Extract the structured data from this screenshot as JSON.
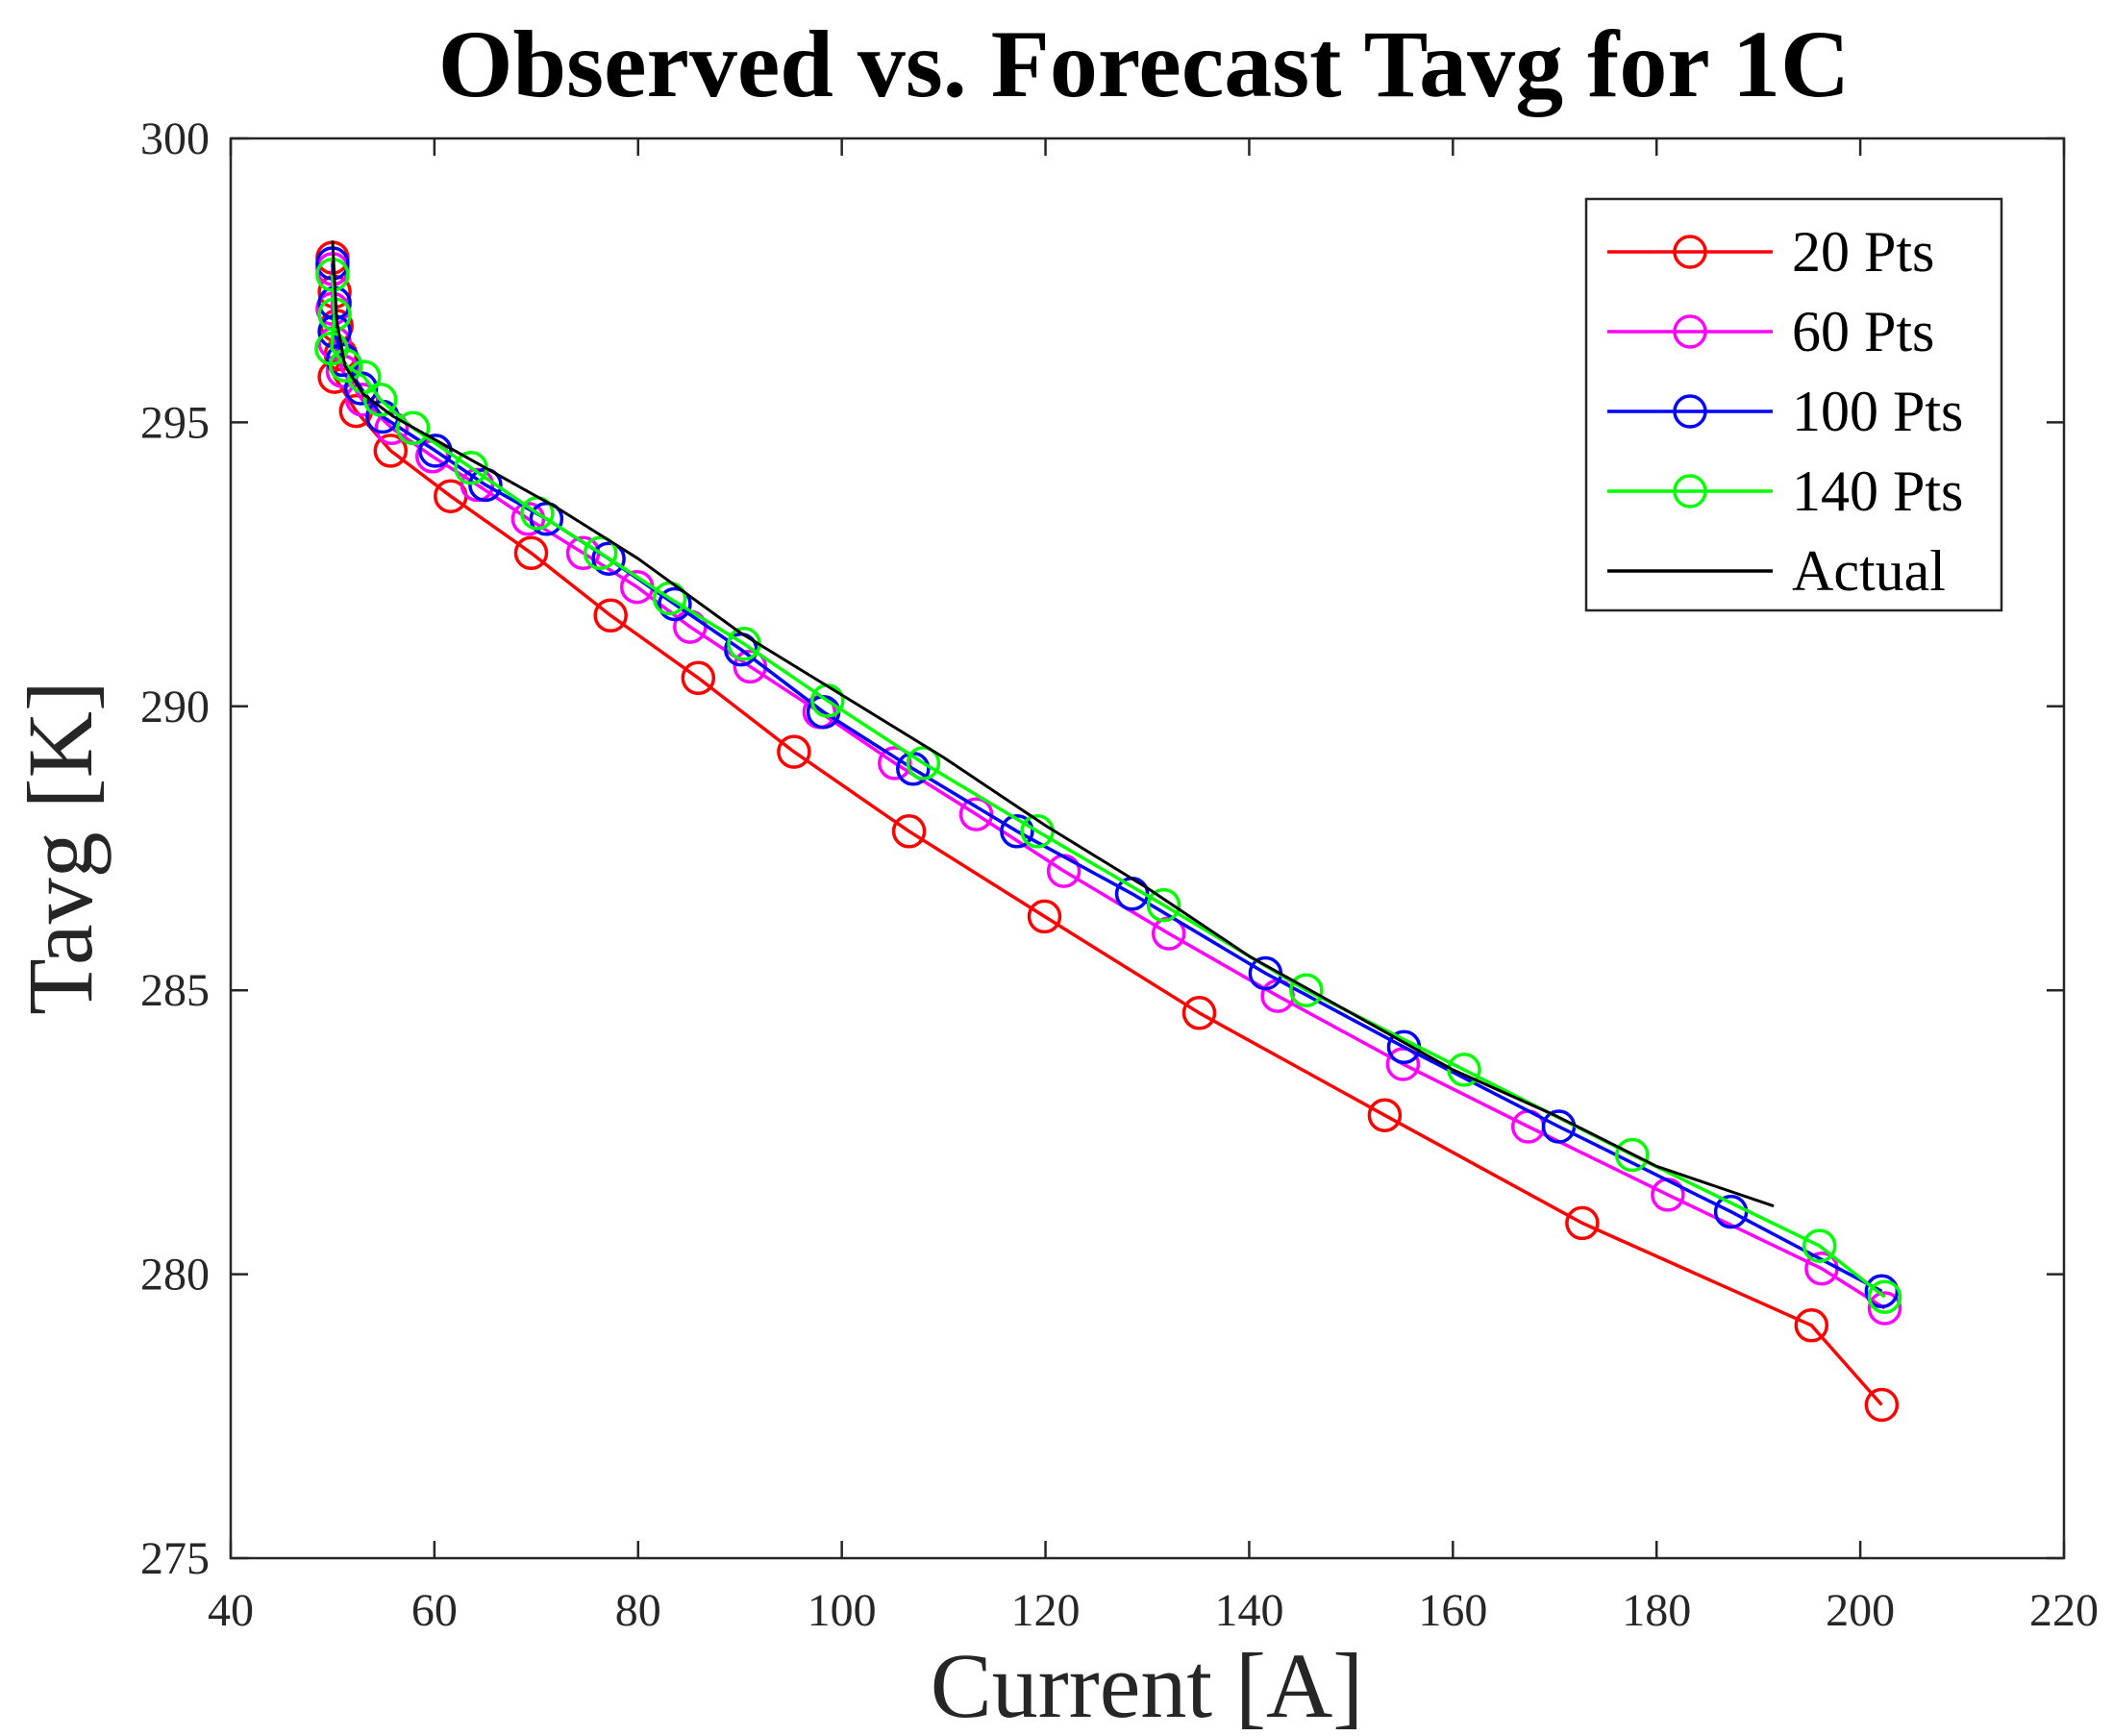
{
  "chart_data": {
    "type": "line",
    "title": "Observed vs. Forecast Tavg for 1C",
    "xlabel": "Current [A]",
    "ylabel": "Tavg [K]",
    "xlim": [
      40,
      220
    ],
    "ylim": [
      275,
      300
    ],
    "xticks": [
      40,
      60,
      80,
      100,
      120,
      140,
      160,
      180,
      200,
      220
    ],
    "yticks": [
      275,
      280,
      285,
      290,
      295,
      300
    ],
    "legend_position": "top-right",
    "series": [
      {
        "name": "20 Pts",
        "color": "#ff0000",
        "marker": "circle",
        "points": [
          [
            50.0,
            297.9
          ],
          [
            50.2,
            297.3
          ],
          [
            50.4,
            296.7
          ],
          [
            50.8,
            296.2
          ],
          [
            50.2,
            295.8
          ],
          [
            52.3,
            295.2
          ],
          [
            55.7,
            294.5
          ],
          [
            61.6,
            293.7
          ],
          [
            69.5,
            292.7
          ],
          [
            77.3,
            291.6
          ],
          [
            85.9,
            290.5
          ],
          [
            95.3,
            289.2
          ],
          [
            106.6,
            287.8
          ],
          [
            119.9,
            286.3
          ],
          [
            135.1,
            284.6
          ],
          [
            153.3,
            282.8
          ],
          [
            172.7,
            280.9
          ],
          [
            195.2,
            279.1
          ],
          [
            202.1,
            277.7
          ]
        ]
      },
      {
        "name": "60 Pts",
        "color": "#ff00ff",
        "marker": "circle",
        "points": [
          [
            50.0,
            297.7
          ],
          [
            50.0,
            297.0
          ],
          [
            50.2,
            296.4
          ],
          [
            51.0,
            295.9
          ],
          [
            52.9,
            295.4
          ],
          [
            55.8,
            294.9
          ],
          [
            59.8,
            294.4
          ],
          [
            64.2,
            293.9
          ],
          [
            69.2,
            293.3
          ],
          [
            74.6,
            292.7
          ],
          [
            79.9,
            292.1
          ],
          [
            85.1,
            291.4
          ],
          [
            91.0,
            290.7
          ],
          [
            97.8,
            289.9
          ],
          [
            105.2,
            289.0
          ],
          [
            113.2,
            288.1
          ],
          [
            121.8,
            287.1
          ],
          [
            132.1,
            286.0
          ],
          [
            142.8,
            284.9
          ],
          [
            155.1,
            283.7
          ],
          [
            167.4,
            282.6
          ],
          [
            181.1,
            281.4
          ],
          [
            196.2,
            280.1
          ],
          [
            202.4,
            279.4
          ]
        ]
      },
      {
        "name": "100 Pts",
        "color": "#0000ff",
        "marker": "circle",
        "points": [
          [
            50.0,
            297.8
          ],
          [
            50.2,
            297.1
          ],
          [
            50.2,
            296.6
          ],
          [
            51.0,
            296.1
          ],
          [
            52.8,
            295.6
          ],
          [
            54.9,
            295.1
          ],
          [
            60.1,
            294.5
          ],
          [
            65.0,
            293.9
          ],
          [
            71.0,
            293.3
          ],
          [
            77.1,
            292.6
          ],
          [
            83.6,
            291.8
          ],
          [
            90.1,
            291.0
          ],
          [
            98.2,
            289.9
          ],
          [
            107.0,
            288.9
          ],
          [
            117.2,
            287.8
          ],
          [
            128.5,
            286.7
          ],
          [
            141.6,
            285.3
          ],
          [
            155.2,
            284.0
          ],
          [
            170.4,
            282.6
          ],
          [
            187.3,
            281.1
          ],
          [
            202.1,
            279.7
          ]
        ]
      },
      {
        "name": "140 Pts",
        "color": "#00ff00",
        "marker": "circle",
        "points": [
          [
            50.0,
            297.6
          ],
          [
            50.2,
            296.9
          ],
          [
            49.9,
            296.3
          ],
          [
            51.3,
            296.0
          ],
          [
            53.1,
            295.8
          ],
          [
            54.7,
            295.4
          ],
          [
            57.9,
            294.9
          ],
          [
            63.6,
            294.2
          ],
          [
            70.1,
            293.4
          ],
          [
            76.3,
            292.7
          ],
          [
            83.1,
            291.9
          ],
          [
            90.4,
            291.1
          ],
          [
            98.6,
            290.1
          ],
          [
            108.0,
            289.0
          ],
          [
            119.2,
            287.8
          ],
          [
            131.6,
            286.5
          ],
          [
            145.6,
            285.0
          ],
          [
            161.1,
            283.6
          ],
          [
            177.6,
            282.1
          ],
          [
            196.0,
            280.5
          ],
          [
            202.4,
            279.6
          ]
        ]
      },
      {
        "name": "Actual",
        "color": "#000000",
        "marker": "none",
        "points": [
          [
            50.0,
            298.2
          ],
          [
            50.4,
            296.8
          ],
          [
            51.2,
            296.0
          ],
          [
            53.0,
            295.5
          ],
          [
            56.0,
            295.1
          ],
          [
            60.0,
            294.7
          ],
          [
            66.0,
            294.1
          ],
          [
            72.0,
            293.5
          ],
          [
            80.0,
            292.6
          ],
          [
            90.0,
            291.3
          ],
          [
            100.0,
            290.2
          ],
          [
            110.0,
            289.1
          ],
          [
            120.0,
            287.9
          ],
          [
            130.0,
            286.8
          ],
          [
            140.0,
            285.6
          ],
          [
            150.0,
            284.6
          ],
          [
            160.0,
            283.6
          ],
          [
            170.0,
            282.8
          ],
          [
            180.0,
            281.9
          ],
          [
            191.5,
            281.2
          ]
        ]
      }
    ]
  }
}
